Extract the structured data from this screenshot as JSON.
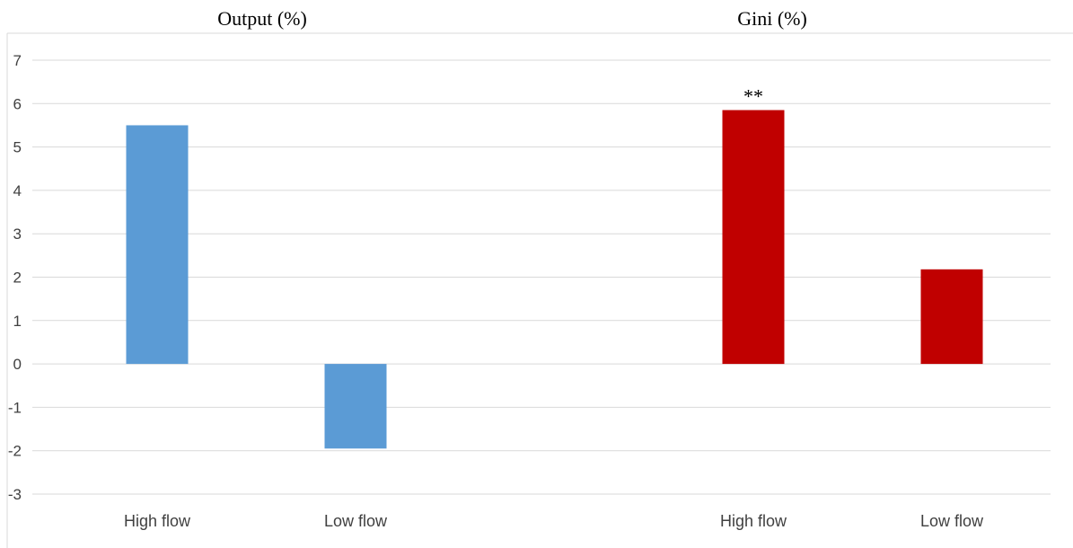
{
  "panel_titles": {
    "left": "Output (%)",
    "right": "Gini (%)"
  },
  "chart_data": {
    "type": "bar",
    "title": "",
    "xlabel": "",
    "ylabel": "",
    "ylim": [
      -3,
      7
    ],
    "yticks": [
      "7",
      "6",
      "5",
      "4",
      "3",
      "2",
      "1",
      "0",
      "-1",
      "-2",
      "-3"
    ],
    "grid": true,
    "legend": "none",
    "groups": [
      {
        "title": "Output (%)",
        "color": "#5b9bd5",
        "categories": [
          "High flow",
          "Low flow"
        ],
        "values": [
          5.5,
          -1.95
        ],
        "annotations": [
          "",
          ""
        ]
      },
      {
        "title": "Gini (%)",
        "color": "#c00000",
        "categories": [
          "High flow",
          "Low flow"
        ],
        "values": [
          5.85,
          2.18
        ],
        "annotations": [
          "**",
          ""
        ]
      }
    ]
  }
}
